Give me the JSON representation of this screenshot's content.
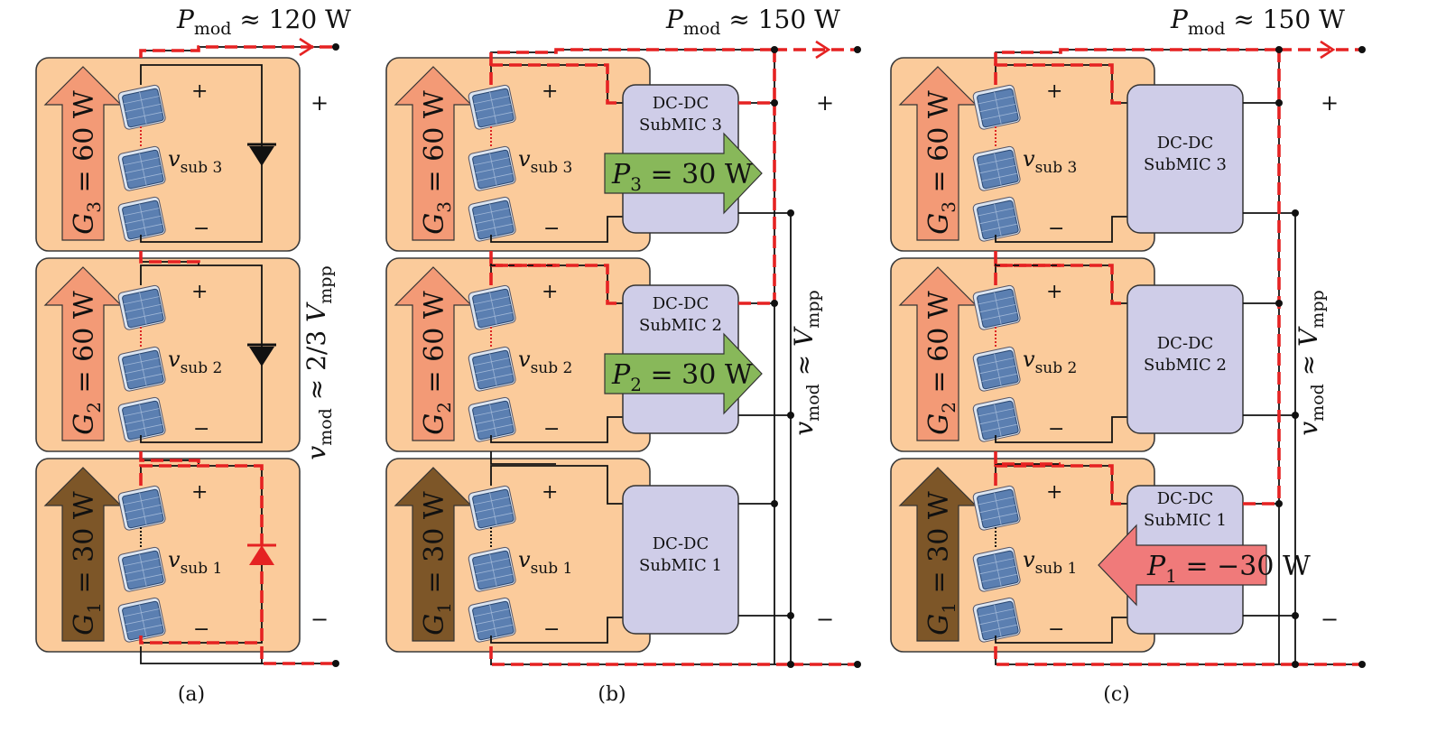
{
  "colors": {
    "sub_bg": "#fbcb9b",
    "sub_stroke": "#3a3a3a",
    "arrow_strong": "#f39a76",
    "arrow_weak": "#7d5628",
    "converter": "#cfcde8",
    "power_pos": "#88b85a",
    "power_neg": "#f07a7a",
    "current": "#e52222",
    "wire": "#111111"
  },
  "icons": [
    "solar-cell-icon",
    "bypass-diode-icon",
    "terminal-dot-icon",
    "current-arrowhead-icon"
  ],
  "panels": [
    {
      "caption": "(a)",
      "pmod": {
        "sym": "P",
        "sub": "mod",
        "rest": "≈ 120 W"
      },
      "vmod": {
        "sym": "v",
        "sub": "mod",
        "rest": "≈ 2/3",
        "sym2": "V",
        "sub2": "mpp"
      },
      "plus": "+",
      "minus": "−",
      "subs": [
        {
          "g_sym": "G",
          "g_idx": "3",
          "g_rest": "= 60 W",
          "v_sym": "v",
          "v_sub": "sub 3",
          "plus": "+",
          "minus": "−"
        },
        {
          "g_sym": "G",
          "g_idx": "2",
          "g_rest": "= 60 W",
          "v_sym": "v",
          "v_sub": "sub 2",
          "plus": "+",
          "minus": "−"
        },
        {
          "g_sym": "G",
          "g_idx": "1",
          "g_rest": "= 30 W",
          "v_sym": "v",
          "v_sub": "sub 1",
          "plus": "+",
          "minus": "−"
        }
      ]
    },
    {
      "caption": "(b)",
      "pmod": {
        "sym": "P",
        "sub": "mod",
        "rest": "≈ 150 W"
      },
      "vmod": {
        "sym": "v",
        "sub": "mod",
        "rest": "≈",
        "sym2": "V",
        "sub2": "mpp"
      },
      "plus": "+",
      "minus": "−",
      "subs": [
        {
          "g_sym": "G",
          "g_idx": "3",
          "g_rest": "= 60 W",
          "v_sym": "v",
          "v_sub": "sub 3",
          "plus": "+",
          "minus": "−",
          "conv1": "DC-DC",
          "conv2": "SubMIC 3",
          "power": {
            "sym": "P",
            "idx": "3",
            "rest": "= 30 W"
          }
        },
        {
          "g_sym": "G",
          "g_idx": "2",
          "g_rest": "= 60 W",
          "v_sym": "v",
          "v_sub": "sub 2",
          "plus": "+",
          "minus": "−",
          "conv1": "DC-DC",
          "conv2": "SubMIC 2",
          "power": {
            "sym": "P",
            "idx": "2",
            "rest": "= 30 W"
          }
        },
        {
          "g_sym": "G",
          "g_idx": "1",
          "g_rest": "= 30 W",
          "v_sym": "v",
          "v_sub": "sub 1",
          "plus": "+",
          "minus": "−",
          "conv1": "DC-DC",
          "conv2": "SubMIC 1"
        }
      ]
    },
    {
      "caption": "(c)",
      "pmod": {
        "sym": "P",
        "sub": "mod",
        "rest": "≈ 150 W"
      },
      "vmod": {
        "sym": "v",
        "sub": "mod",
        "rest": "≈",
        "sym2": "V",
        "sub2": "mpp"
      },
      "plus": "+",
      "minus": "−",
      "subs": [
        {
          "g_sym": "G",
          "g_idx": "3",
          "g_rest": "= 60 W",
          "v_sym": "v",
          "v_sub": "sub 3",
          "plus": "+",
          "minus": "−",
          "conv1": "DC-DC",
          "conv2": "SubMIC 3"
        },
        {
          "g_sym": "G",
          "g_idx": "2",
          "g_rest": "= 60 W",
          "v_sym": "v",
          "v_sub": "sub 2",
          "plus": "+",
          "minus": "−",
          "conv1": "DC-DC",
          "conv2": "SubMIC 2"
        },
        {
          "g_sym": "G",
          "g_idx": "1",
          "g_rest": "= 30 W",
          "v_sym": "v",
          "v_sub": "sub 1",
          "plus": "+",
          "minus": "−",
          "conv1": "DC-DC",
          "conv2": "SubMIC 1",
          "power": {
            "sym": "P",
            "idx": "1",
            "rest": "= −30 W"
          }
        }
      ]
    }
  ]
}
